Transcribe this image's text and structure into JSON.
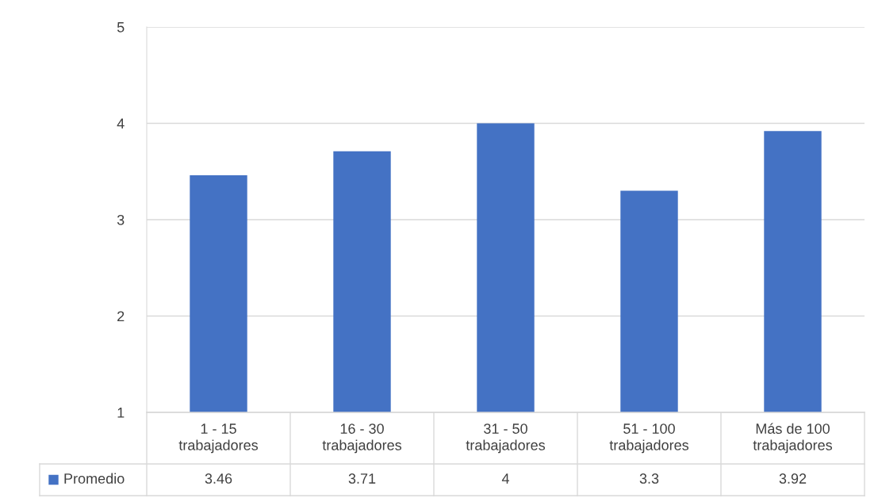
{
  "chart_data": {
    "type": "bar",
    "categories": [
      "1 - 15\ntrabajadores",
      "16 - 30\ntrabajadores",
      "31 - 50\ntrabajadores",
      "51 - 100\ntrabajadores",
      "Más de 100\ntrabajadores"
    ],
    "series": [
      {
        "name": "Promedio",
        "color": "#4472c4",
        "values": [
          3.46,
          3.71,
          4,
          3.3,
          3.92
        ]
      }
    ],
    "ylim": [
      1,
      5
    ],
    "yticks": [
      1,
      2,
      3,
      4,
      5
    ],
    "grid": "y",
    "legend": "bottom",
    "data_labels": true
  }
}
